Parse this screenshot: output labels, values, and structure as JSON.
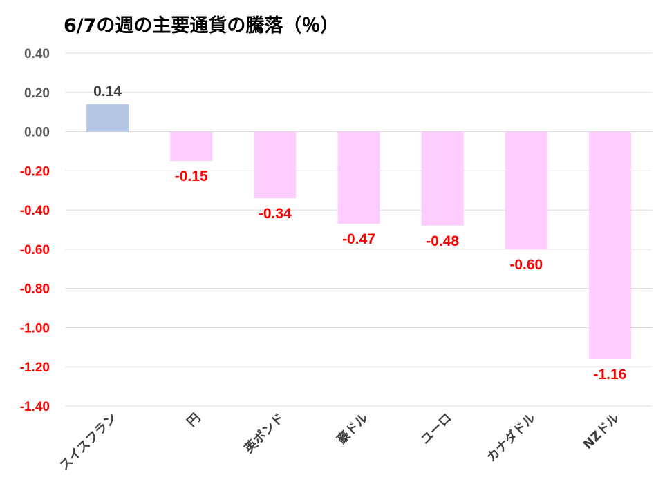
{
  "chart_data": {
    "type": "bar",
    "title": "6/7の週の主要通貨の騰落（％）",
    "categories": [
      "スイスフラン",
      "円",
      "英ポンド",
      "豪ドル",
      "ユーロ",
      "カナダドル",
      "NZドル"
    ],
    "values": [
      0.14,
      -0.15,
      -0.34,
      -0.47,
      -0.48,
      -0.6,
      -1.16
    ],
    "data_labels": [
      "0.14",
      "-0.15",
      "-0.34",
      "-0.47",
      "-0.48",
      "-0.60",
      "-1.16"
    ],
    "ylim": [
      -1.4,
      0.4
    ],
    "yticks": [
      0.4,
      0.2,
      0.0,
      -0.2,
      -0.4,
      -0.6,
      -0.8,
      -1.0,
      -1.2,
      -1.4
    ],
    "ytick_labels": [
      "0.40",
      "0.20",
      "0.00",
      "-0.20",
      "-0.40",
      "-0.60",
      "-0.80",
      "-1.00",
      "-1.20",
      "-1.40"
    ],
    "xlabel": "",
    "ylabel": "",
    "grid": true,
    "colors": {
      "positive_bar": "#b4c7e7",
      "negative_bar": "#ffccff",
      "positive_label": "#404040",
      "negative_label": "#ff0000",
      "positive_tick": "#595959",
      "negative_tick": "#ff0000"
    }
  }
}
